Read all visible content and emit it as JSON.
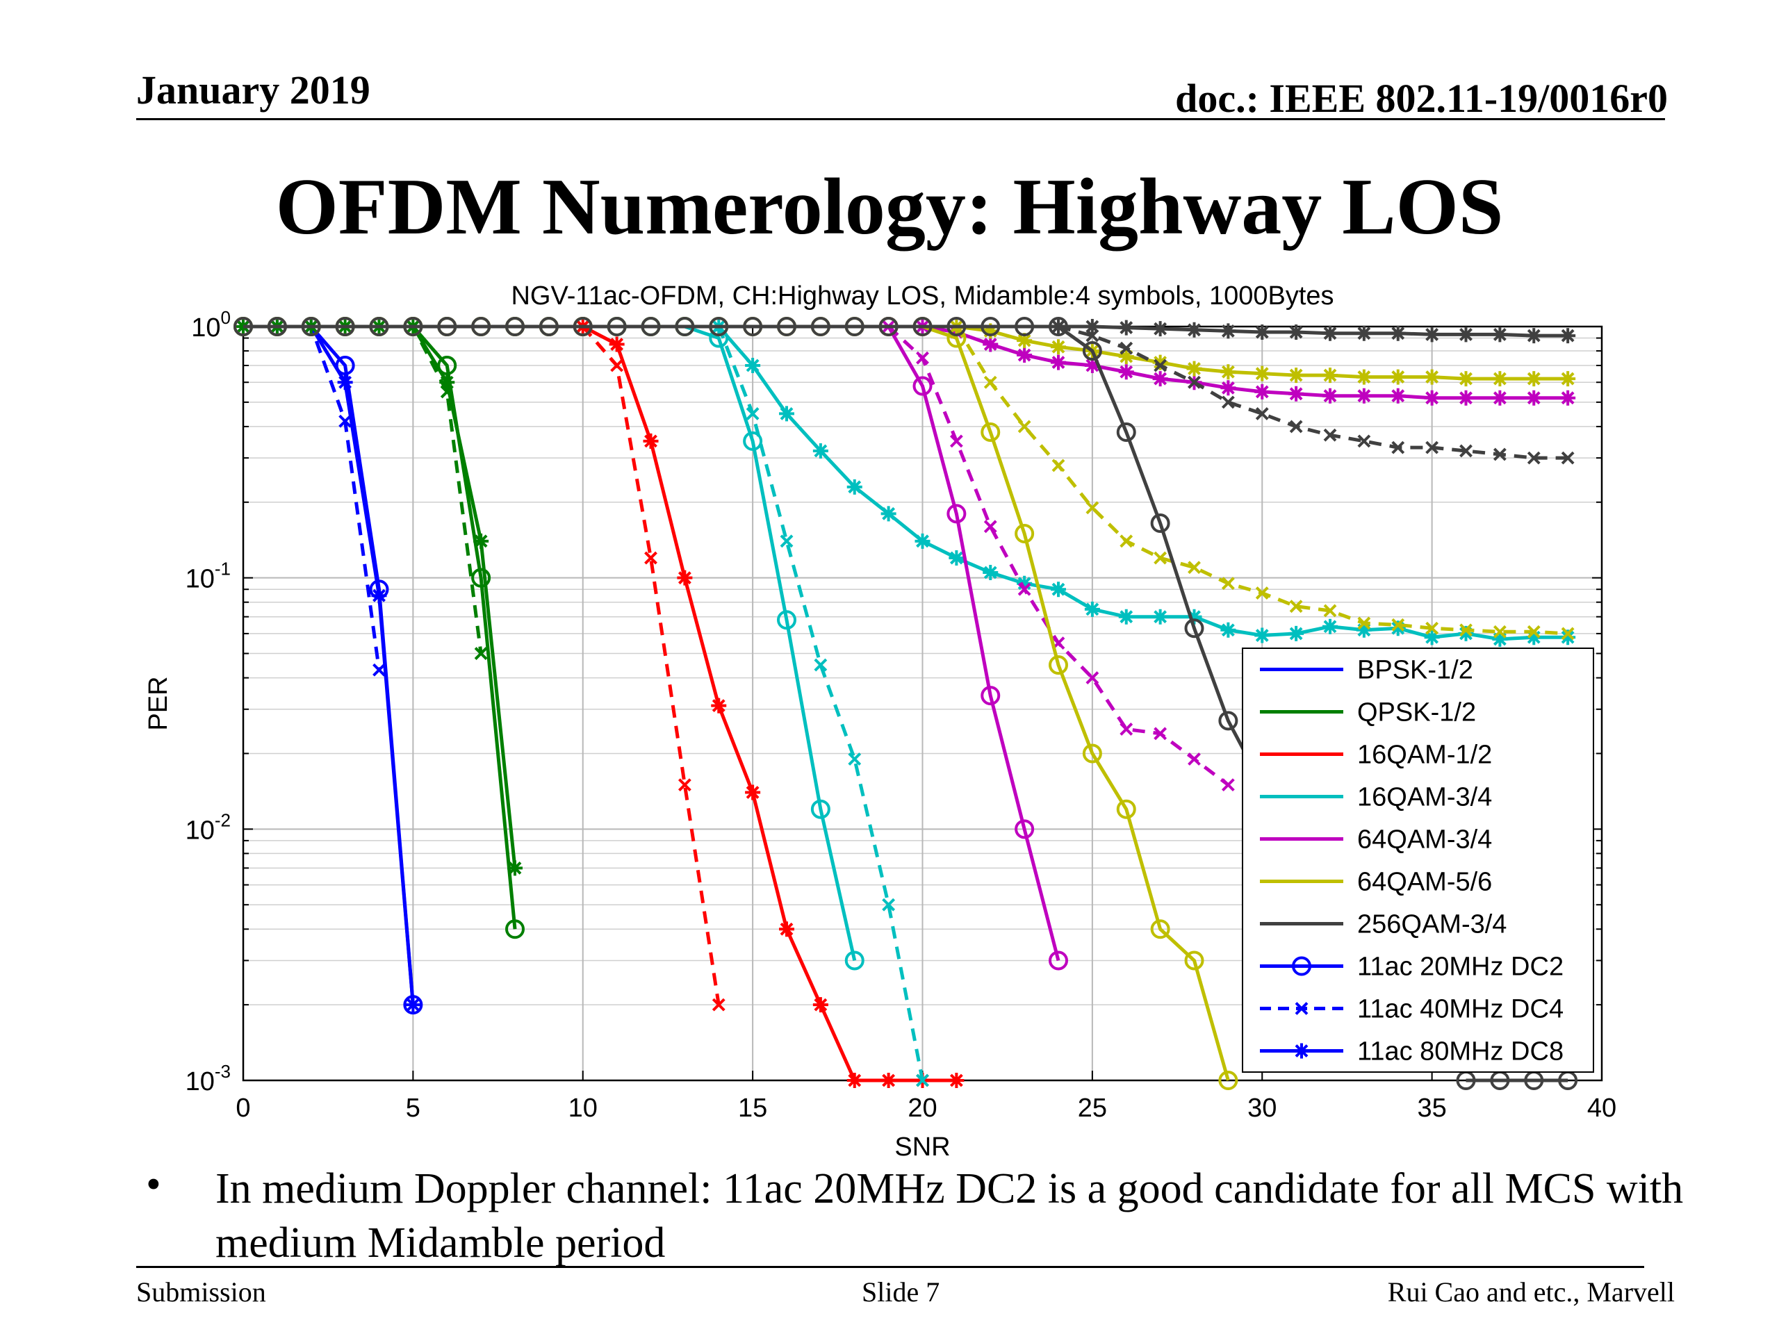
{
  "header": {
    "date": "January 2019",
    "doc": "doc.: IEEE 802.11-19/0016r0"
  },
  "slide": {
    "title": "OFDM Numerology: Highway LOS",
    "bullet": "In medium Doppler channel: 11ac 20MHz DC2 is a good candidate for all MCS with medium Midamble period"
  },
  "footer": {
    "left": "Submission",
    "center": "Slide 7",
    "right": "Rui Cao and etc., Marvell"
  },
  "chart_data": {
    "type": "line",
    "title": "NGV-11ac-OFDM, CH:Highway LOS, Midamble:4 symbols, 1000Bytes",
    "xlabel": "SNR",
    "ylabel": "PER",
    "xlim": [
      0,
      40
    ],
    "ylim": [
      0.001,
      1
    ],
    "yscale": "log",
    "grid": true,
    "xticks": [
      "0",
      "5",
      "10",
      "15",
      "20",
      "25",
      "30",
      "35",
      "40"
    ],
    "yticks": [
      {
        "base": "10",
        "exp": "0",
        "value": 1
      },
      {
        "base": "10",
        "exp": "-1",
        "value": 0.1
      },
      {
        "base": "10",
        "exp": "-2",
        "value": 0.01
      },
      {
        "base": "10",
        "exp": "-3",
        "value": 0.001
      }
    ],
    "legend_position": "lower-right",
    "legend": [
      {
        "label": "BPSK-1/2",
        "color": "#0000ff",
        "style": "solid",
        "marker": "none"
      },
      {
        "label": "QPSK-1/2",
        "color": "#007f00",
        "style": "solid",
        "marker": "none"
      },
      {
        "label": "16QAM-1/2",
        "color": "#ff0000",
        "style": "solid",
        "marker": "none"
      },
      {
        "label": "16QAM-3/4",
        "color": "#00bfbf",
        "style": "solid",
        "marker": "none"
      },
      {
        "label": "64QAM-3/4",
        "color": "#bf00bf",
        "style": "solid",
        "marker": "none"
      },
      {
        "label": "64QAM-5/6",
        "color": "#bfbf00",
        "style": "solid",
        "marker": "none"
      },
      {
        "label": "256QAM-3/4",
        "color": "#404040",
        "style": "solid",
        "marker": "none"
      },
      {
        "label": "11ac 20MHz DC2",
        "color": "#0000ff",
        "style": "solid",
        "marker": "circle"
      },
      {
        "label": "11ac 40MHz DC4",
        "color": "#0000ff",
        "style": "dashed",
        "marker": "x"
      },
      {
        "label": "11ac 80MHz DC8",
        "color": "#0000ff",
        "style": "solid",
        "marker": "star"
      }
    ],
    "series": [
      {
        "mcs": "BPSK-1/2",
        "config": "11ac 20MHz DC2",
        "color": "#0000ff",
        "style": "solid",
        "marker": "circle",
        "x": [
          0,
          1,
          2,
          3,
          4,
          5
        ],
        "y": [
          1,
          1,
          1,
          0.7,
          0.09,
          0.002
        ]
      },
      {
        "mcs": "BPSK-1/2",
        "config": "11ac 40MHz DC4",
        "color": "#0000ff",
        "style": "dashed",
        "marker": "x",
        "x": [
          0,
          1,
          2,
          3,
          4
        ],
        "y": [
          1,
          1,
          1,
          0.42,
          0.043
        ]
      },
      {
        "mcs": "BPSK-1/2",
        "config": "11ac 80MHz DC8",
        "color": "#0000ff",
        "style": "solid",
        "marker": "star",
        "x": [
          0,
          1,
          2,
          3,
          4,
          5
        ],
        "y": [
          1,
          1,
          1,
          0.6,
          0.085,
          0.002
        ]
      },
      {
        "mcs": "QPSK-1/2",
        "config": "11ac 20MHz DC2",
        "color": "#007f00",
        "style": "solid",
        "marker": "circle",
        "x": [
          0,
          1,
          2,
          3,
          4,
          5,
          6,
          7,
          8
        ],
        "y": [
          1,
          1,
          1,
          1,
          1,
          1,
          0.7,
          0.1,
          0.004
        ]
      },
      {
        "mcs": "QPSK-1/2",
        "config": "11ac 40MHz DC4",
        "color": "#007f00",
        "style": "dashed",
        "marker": "x",
        "x": [
          0,
          1,
          2,
          3,
          4,
          5,
          6,
          7
        ],
        "y": [
          1,
          1,
          1,
          1,
          1,
          1,
          0.55,
          0.05
        ]
      },
      {
        "mcs": "QPSK-1/2",
        "config": "11ac 80MHz DC8",
        "color": "#007f00",
        "style": "solid",
        "marker": "star",
        "x": [
          0,
          1,
          2,
          3,
          4,
          5,
          6,
          7,
          8
        ],
        "y": [
          1,
          1,
          1,
          1,
          1,
          1,
          0.6,
          0.14,
          0.007
        ]
      },
      {
        "mcs": "16QAM-1/2",
        "config": "11ac 20MHz DC2",
        "color": "#ff0000",
        "style": "solid",
        "marker": "circle",
        "x": [
          0,
          1,
          2,
          3,
          4,
          5,
          6,
          7,
          8,
          9,
          10
        ],
        "y": [
          1,
          1,
          1,
          1,
          1,
          1,
          1,
          1,
          1,
          1,
          1
        ]
      },
      {
        "mcs": "16QAM-1/2",
        "config": "11ac 40MHz DC4",
        "color": "#ff0000",
        "style": "dashed",
        "marker": "x",
        "x": [
          10,
          11,
          12,
          13,
          14
        ],
        "y": [
          1,
          0.7,
          0.12,
          0.015,
          0.002
        ]
      },
      {
        "mcs": "16QAM-1/2",
        "config": "11ac 80MHz DC8",
        "color": "#ff0000",
        "style": "solid",
        "marker": "star",
        "x": [
          10,
          11,
          12,
          13,
          14,
          15,
          16,
          17,
          18,
          19,
          20,
          21
        ],
        "y": [
          1,
          0.85,
          0.35,
          0.1,
          0.031,
          0.014,
          0.004,
          0.002,
          0.001,
          0.001,
          0.001,
          0.001
        ]
      },
      {
        "mcs": "16QAM-3/4",
        "config": "11ac 20MHz DC2",
        "color": "#00bfbf",
        "style": "solid",
        "marker": "circle",
        "x": [
          0,
          1,
          2,
          3,
          4,
          5,
          6,
          7,
          8,
          9,
          10,
          11,
          12,
          13,
          14,
          15,
          16,
          17,
          18
        ],
        "y": [
          1,
          1,
          1,
          1,
          1,
          1,
          1,
          1,
          1,
          1,
          1,
          1,
          1,
          1,
          0.9,
          0.35,
          0.068,
          0.012,
          0.003
        ]
      },
      {
        "mcs": "16QAM-3/4",
        "config": "11ac 40MHz DC4",
        "color": "#00bfbf",
        "style": "dashed",
        "marker": "x",
        "x": [
          14,
          15,
          16,
          17,
          18,
          19,
          20
        ],
        "y": [
          1,
          0.45,
          0.14,
          0.045,
          0.019,
          0.005,
          0.001
        ]
      },
      {
        "mcs": "16QAM-3/4",
        "config": "11ac 80MHz DC8",
        "color": "#00bfbf",
        "style": "solid",
        "marker": "star",
        "x": [
          14,
          15,
          16,
          17,
          18,
          19,
          20,
          21,
          22,
          23,
          24,
          25,
          26,
          27,
          28,
          29,
          30,
          31,
          32,
          33,
          34,
          35,
          36,
          37,
          38,
          39
        ],
        "y": [
          1,
          0.7,
          0.45,
          0.32,
          0.23,
          0.18,
          0.14,
          0.12,
          0.105,
          0.095,
          0.09,
          0.075,
          0.07,
          0.07,
          0.07,
          0.062,
          0.059,
          0.06,
          0.064,
          0.062,
          0.063,
          0.058,
          0.06,
          0.057,
          0.058,
          0.058
        ]
      },
      {
        "mcs": "64QAM-3/4",
        "config": "11ac 20MHz DC2",
        "color": "#bf00bf",
        "style": "solid",
        "marker": "circle",
        "x": [
          19,
          20,
          21,
          22,
          23,
          24
        ],
        "y": [
          1,
          0.58,
          0.18,
          0.034,
          0.01,
          0.003
        ]
      },
      {
        "mcs": "64QAM-3/4",
        "config": "11ac 40MHz DC4",
        "color": "#bf00bf",
        "style": "dashed",
        "marker": "x",
        "x": [
          19,
          20,
          21,
          22,
          23,
          24,
          25,
          26,
          27,
          28,
          29
        ],
        "y": [
          1,
          0.75,
          0.35,
          0.16,
          0.09,
          0.055,
          0.04,
          0.025,
          0.024,
          0.019,
          0.015
        ]
      },
      {
        "mcs": "64QAM-3/4",
        "config": "11ac 80MHz DC8",
        "color": "#bf00bf",
        "style": "solid",
        "marker": "star",
        "x": [
          20,
          21,
          22,
          23,
          24,
          25,
          26,
          27,
          28,
          29,
          30,
          31,
          32,
          33,
          34,
          35,
          36,
          37,
          38,
          39
        ],
        "y": [
          1,
          0.95,
          0.85,
          0.77,
          0.72,
          0.7,
          0.66,
          0.62,
          0.6,
          0.57,
          0.55,
          0.54,
          0.53,
          0.53,
          0.53,
          0.52,
          0.52,
          0.52,
          0.52,
          0.52
        ]
      },
      {
        "mcs": "64QAM-5/6",
        "config": "11ac 20MHz DC2",
        "color": "#bfbf00",
        "style": "solid",
        "marker": "circle",
        "x": [
          0,
          1,
          2,
          3,
          4,
          5,
          6,
          7,
          8,
          9,
          10,
          11,
          12,
          13,
          14,
          15,
          16,
          17,
          18,
          19,
          20,
          21,
          22,
          23,
          24,
          25,
          26,
          27,
          28,
          29
        ],
        "y": [
          1,
          1,
          1,
          1,
          1,
          1,
          1,
          1,
          1,
          1,
          1,
          1,
          1,
          1,
          1,
          1,
          1,
          1,
          1,
          1,
          1,
          0.9,
          0.38,
          0.15,
          0.045,
          0.02,
          0.012,
          0.004,
          0.003,
          0.001
        ]
      },
      {
        "mcs": "64QAM-5/6",
        "config": "11ac 40MHz DC4",
        "color": "#bfbf00",
        "style": "dashed",
        "marker": "x",
        "x": [
          21,
          22,
          23,
          24,
          25,
          26,
          27,
          28,
          29,
          30,
          31,
          32,
          33,
          34,
          35,
          36,
          37,
          38,
          39
        ],
        "y": [
          1,
          0.6,
          0.4,
          0.28,
          0.19,
          0.14,
          0.12,
          0.11,
          0.095,
          0.087,
          0.077,
          0.074,
          0.066,
          0.065,
          0.063,
          0.062,
          0.061,
          0.061,
          0.06
        ]
      },
      {
        "mcs": "64QAM-5/6",
        "config": "11ac 80MHz DC8",
        "color": "#bfbf00",
        "style": "solid",
        "marker": "star",
        "x": [
          21,
          22,
          23,
          24,
          25,
          26,
          27,
          28,
          29,
          30,
          31,
          32,
          33,
          34,
          35,
          36,
          37,
          38,
          39
        ],
        "y": [
          1,
          0.96,
          0.88,
          0.83,
          0.8,
          0.76,
          0.72,
          0.68,
          0.66,
          0.65,
          0.64,
          0.64,
          0.63,
          0.63,
          0.63,
          0.62,
          0.62,
          0.62,
          0.62
        ]
      },
      {
        "mcs": "256QAM-3/4",
        "config": "11ac 20MHz DC2",
        "color": "#404040",
        "style": "solid",
        "marker": "circle",
        "x": [
          0,
          1,
          2,
          3,
          4,
          5,
          6,
          7,
          8,
          9,
          10,
          11,
          12,
          13,
          14,
          15,
          16,
          17,
          18,
          19,
          20,
          21,
          22,
          23,
          24,
          25,
          26,
          27,
          28,
          29,
          30
        ],
        "y": [
          1,
          1,
          1,
          1,
          1,
          1,
          1,
          1,
          1,
          1,
          1,
          1,
          1,
          1,
          1,
          1,
          1,
          1,
          1,
          1,
          1,
          1,
          1,
          1,
          1,
          0.8,
          0.38,
          0.165,
          0.063,
          0.027,
          0.015
        ]
      },
      {
        "mcs": "256QAM-3/4",
        "config": "11ac 20MHz DC2",
        "color": "#404040",
        "style": "solid",
        "marker": "circle",
        "x": [
          36,
          37,
          38,
          39
        ],
        "y": [
          0.001,
          0.001,
          0.001,
          0.001
        ]
      },
      {
        "mcs": "256QAM-3/4",
        "config": "11ac 40MHz DC4",
        "color": "#404040",
        "style": "dashed",
        "marker": "x",
        "x": [
          24,
          25,
          26,
          27,
          28,
          29,
          30,
          31,
          32,
          33,
          34,
          35,
          36,
          37,
          38,
          39
        ],
        "y": [
          1,
          0.92,
          0.82,
          0.7,
          0.6,
          0.5,
          0.45,
          0.4,
          0.37,
          0.35,
          0.33,
          0.33,
          0.32,
          0.31,
          0.3,
          0.3
        ]
      },
      {
        "mcs": "256QAM-3/4",
        "config": "11ac 80MHz DC8",
        "color": "#404040",
        "style": "solid",
        "marker": "star",
        "x": [
          24,
          25,
          26,
          27,
          28,
          29,
          30,
          31,
          32,
          33,
          34,
          35,
          36,
          37,
          38,
          39
        ],
        "y": [
          1,
          1,
          0.99,
          0.98,
          0.97,
          0.96,
          0.95,
          0.95,
          0.94,
          0.94,
          0.94,
          0.93,
          0.93,
          0.93,
          0.92,
          0.92
        ]
      }
    ]
  }
}
